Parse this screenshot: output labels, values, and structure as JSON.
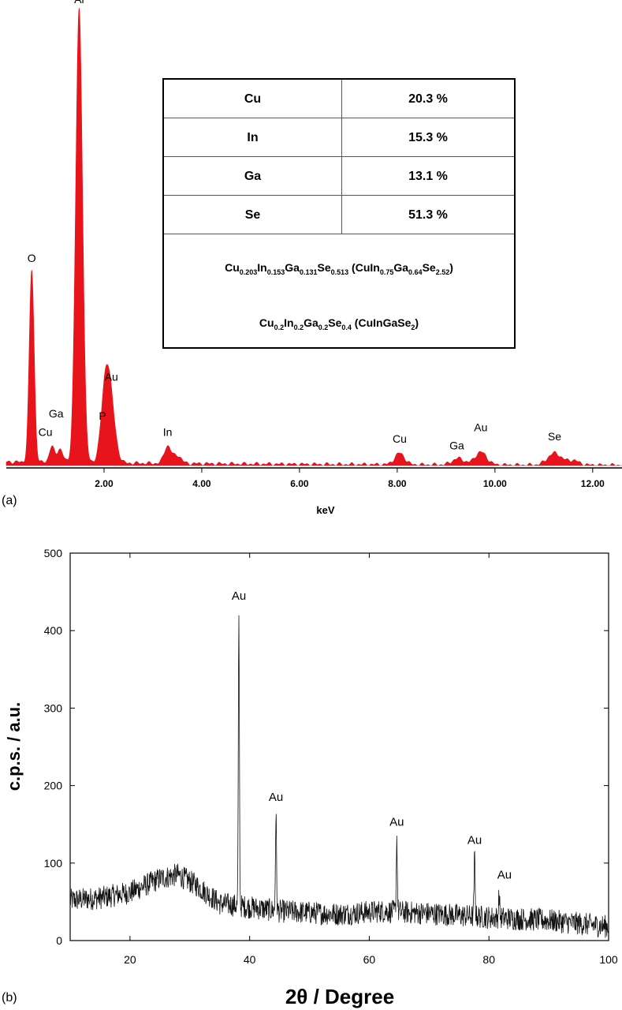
{
  "panel_a_tag": "(a)",
  "panel_b_tag": "(b)",
  "table": {
    "rows": [
      {
        "element": "Cu",
        "value": "20.3 %"
      },
      {
        "element": "In",
        "value": "15.3 %"
      },
      {
        "element": "Ga",
        "value": "13.1 %"
      },
      {
        "element": "Se",
        "value": "51.3 %"
      }
    ],
    "formula1": {
      "parts": [
        "Cu",
        "0.203",
        "In",
        "0.153",
        "Ga",
        "0.131",
        "Se",
        "0.513",
        " (CuIn",
        "0.75",
        "Ga",
        "0.64",
        "Se",
        "2.52",
        ")"
      ]
    },
    "formula2": {
      "parts": [
        "Cu",
        "0.2",
        "In",
        "0.2",
        "Ga",
        "0.2",
        "Se",
        "0.4",
        " (CuInGaSe",
        "2",
        ")"
      ]
    }
  },
  "colors": {
    "eds_fill": "#e8141c",
    "xrd_line": "#111111"
  },
  "chart_data": [
    {
      "type": "area",
      "xlabel": "keV",
      "ylabel": "",
      "xlim": [
        0.0,
        12.6
      ],
      "ylim": [
        0,
        1000
      ],
      "xticks": [
        2.0,
        4.0,
        6.0,
        8.0,
        10.0,
        12.0
      ],
      "xtick_labels": [
        "2.00",
        "4.00",
        "6.00",
        "8.00",
        "10.00",
        "12.00"
      ],
      "baseline": 8,
      "peaks": [
        {
          "x": 0.52,
          "height": 420,
          "width": 0.05
        },
        {
          "x": 0.93,
          "height": 35,
          "width": 0.05
        },
        {
          "x": 1.1,
          "height": 30,
          "width": 0.06
        },
        {
          "x": 1.49,
          "height": 990,
          "width": 0.07
        },
        {
          "x": 2.03,
          "height": 140,
          "width": 0.09
        },
        {
          "x": 2.13,
          "height": 110,
          "width": 0.1
        },
        {
          "x": 3.3,
          "height": 38,
          "width": 0.07
        },
        {
          "x": 3.5,
          "height": 18,
          "width": 0.08
        },
        {
          "x": 8.05,
          "height": 25,
          "width": 0.1
        },
        {
          "x": 9.25,
          "height": 14,
          "width": 0.12
        },
        {
          "x": 9.71,
          "height": 28,
          "width": 0.12
        },
        {
          "x": 11.22,
          "height": 26,
          "width": 0.14
        },
        {
          "x": 11.6,
          "height": 10,
          "width": 0.12
        }
      ],
      "annotations": [
        {
          "text": "Al",
          "x": 1.49,
          "y": 1010
        },
        {
          "text": "O",
          "x": 0.52,
          "y": 445
        },
        {
          "text": "Au",
          "x": 2.15,
          "y": 185
        },
        {
          "text": "Ga",
          "x": 1.02,
          "y": 105
        },
        {
          "text": "Cu",
          "x": 0.8,
          "y": 65
        },
        {
          "text": "P",
          "x": 1.97,
          "y": 100
        },
        {
          "text": "In",
          "x": 3.3,
          "y": 65
        },
        {
          "text": "Cu",
          "x": 8.05,
          "y": 50
        },
        {
          "text": "Ga",
          "x": 9.22,
          "y": 35
        },
        {
          "text": "Au",
          "x": 9.71,
          "y": 75
        },
        {
          "text": "Se",
          "x": 11.22,
          "y": 55
        }
      ]
    },
    {
      "type": "line",
      "xlabel": "2θ  /  Degree",
      "ylabel": "c.p.s.  / a.u.",
      "xlim": [
        10,
        100
      ],
      "ylim": [
        0,
        500
      ],
      "xticks": [
        20,
        40,
        60,
        80,
        100
      ],
      "yticks": [
        0,
        100,
        200,
        300,
        400,
        500
      ],
      "background": [
        [
          10,
          52
        ],
        [
          15,
          55
        ],
        [
          20,
          62
        ],
        [
          25,
          80
        ],
        [
          28,
          85
        ],
        [
          31,
          72
        ],
        [
          35,
          48
        ],
        [
          45,
          38
        ],
        [
          55,
          34
        ],
        [
          62,
          38
        ],
        [
          70,
          35
        ],
        [
          80,
          30
        ],
        [
          90,
          26
        ],
        [
          100,
          18
        ]
      ],
      "peaks": [
        {
          "x": 38.2,
          "height": 412
        },
        {
          "x": 44.4,
          "height": 162
        },
        {
          "x": 64.6,
          "height": 132
        },
        {
          "x": 77.6,
          "height": 108
        },
        {
          "x": 81.7,
          "height": 60
        }
      ],
      "annotations": [
        {
          "text": "Au",
          "x": 38.2,
          "y": 440
        },
        {
          "text": "Au",
          "x": 44.4,
          "y": 180
        },
        {
          "text": "Au",
          "x": 64.6,
          "y": 148
        },
        {
          "text": "Au",
          "x": 77.6,
          "y": 125
        },
        {
          "text": "Au",
          "x": 82.6,
          "y": 80
        }
      ]
    }
  ]
}
